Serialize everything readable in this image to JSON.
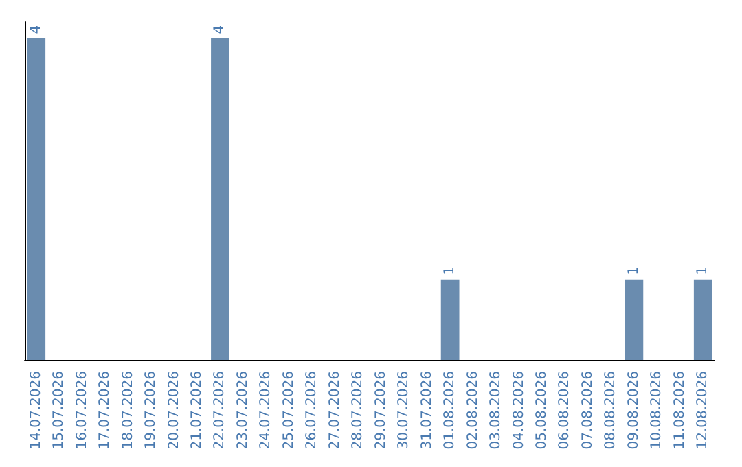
{
  "chart_data": {
    "type": "bar",
    "categories": [
      "14.07.2026",
      "15.07.2026",
      "16.07.2026",
      "17.07.2026",
      "18.07.2026",
      "19.07.2026",
      "20.07.2026",
      "21.07.2026",
      "22.07.2026",
      "23.07.2026",
      "24.07.2026",
      "25.07.2026",
      "26.07.2026",
      "27.07.2026",
      "28.07.2026",
      "29.07.2026",
      "30.07.2026",
      "31.07.2026",
      "01.08.2026",
      "02.08.2026",
      "03.08.2026",
      "04.08.2026",
      "05.08.2026",
      "06.08.2026",
      "07.08.2026",
      "08.08.2026",
      "09.08.2026",
      "10.08.2026",
      "11.08.2026",
      "12.08.2026"
    ],
    "values": [
      4,
      0,
      0,
      0,
      0,
      0,
      0,
      0,
      4,
      0,
      0,
      0,
      0,
      0,
      0,
      0,
      0,
      0,
      1,
      0,
      0,
      0,
      0,
      0,
      0,
      0,
      1,
      0,
      0,
      1
    ],
    "value_labels": [
      "4",
      null,
      null,
      null,
      null,
      null,
      null,
      null,
      "4",
      null,
      null,
      null,
      null,
      null,
      null,
      null,
      null,
      null,
      "1",
      null,
      null,
      null,
      null,
      null,
      null,
      null,
      "1",
      null,
      null,
      "1"
    ],
    "color": "#6a8caf",
    "ylim": [
      0,
      4.2
    ],
    "grid": false,
    "tick_labels": "x"
  }
}
